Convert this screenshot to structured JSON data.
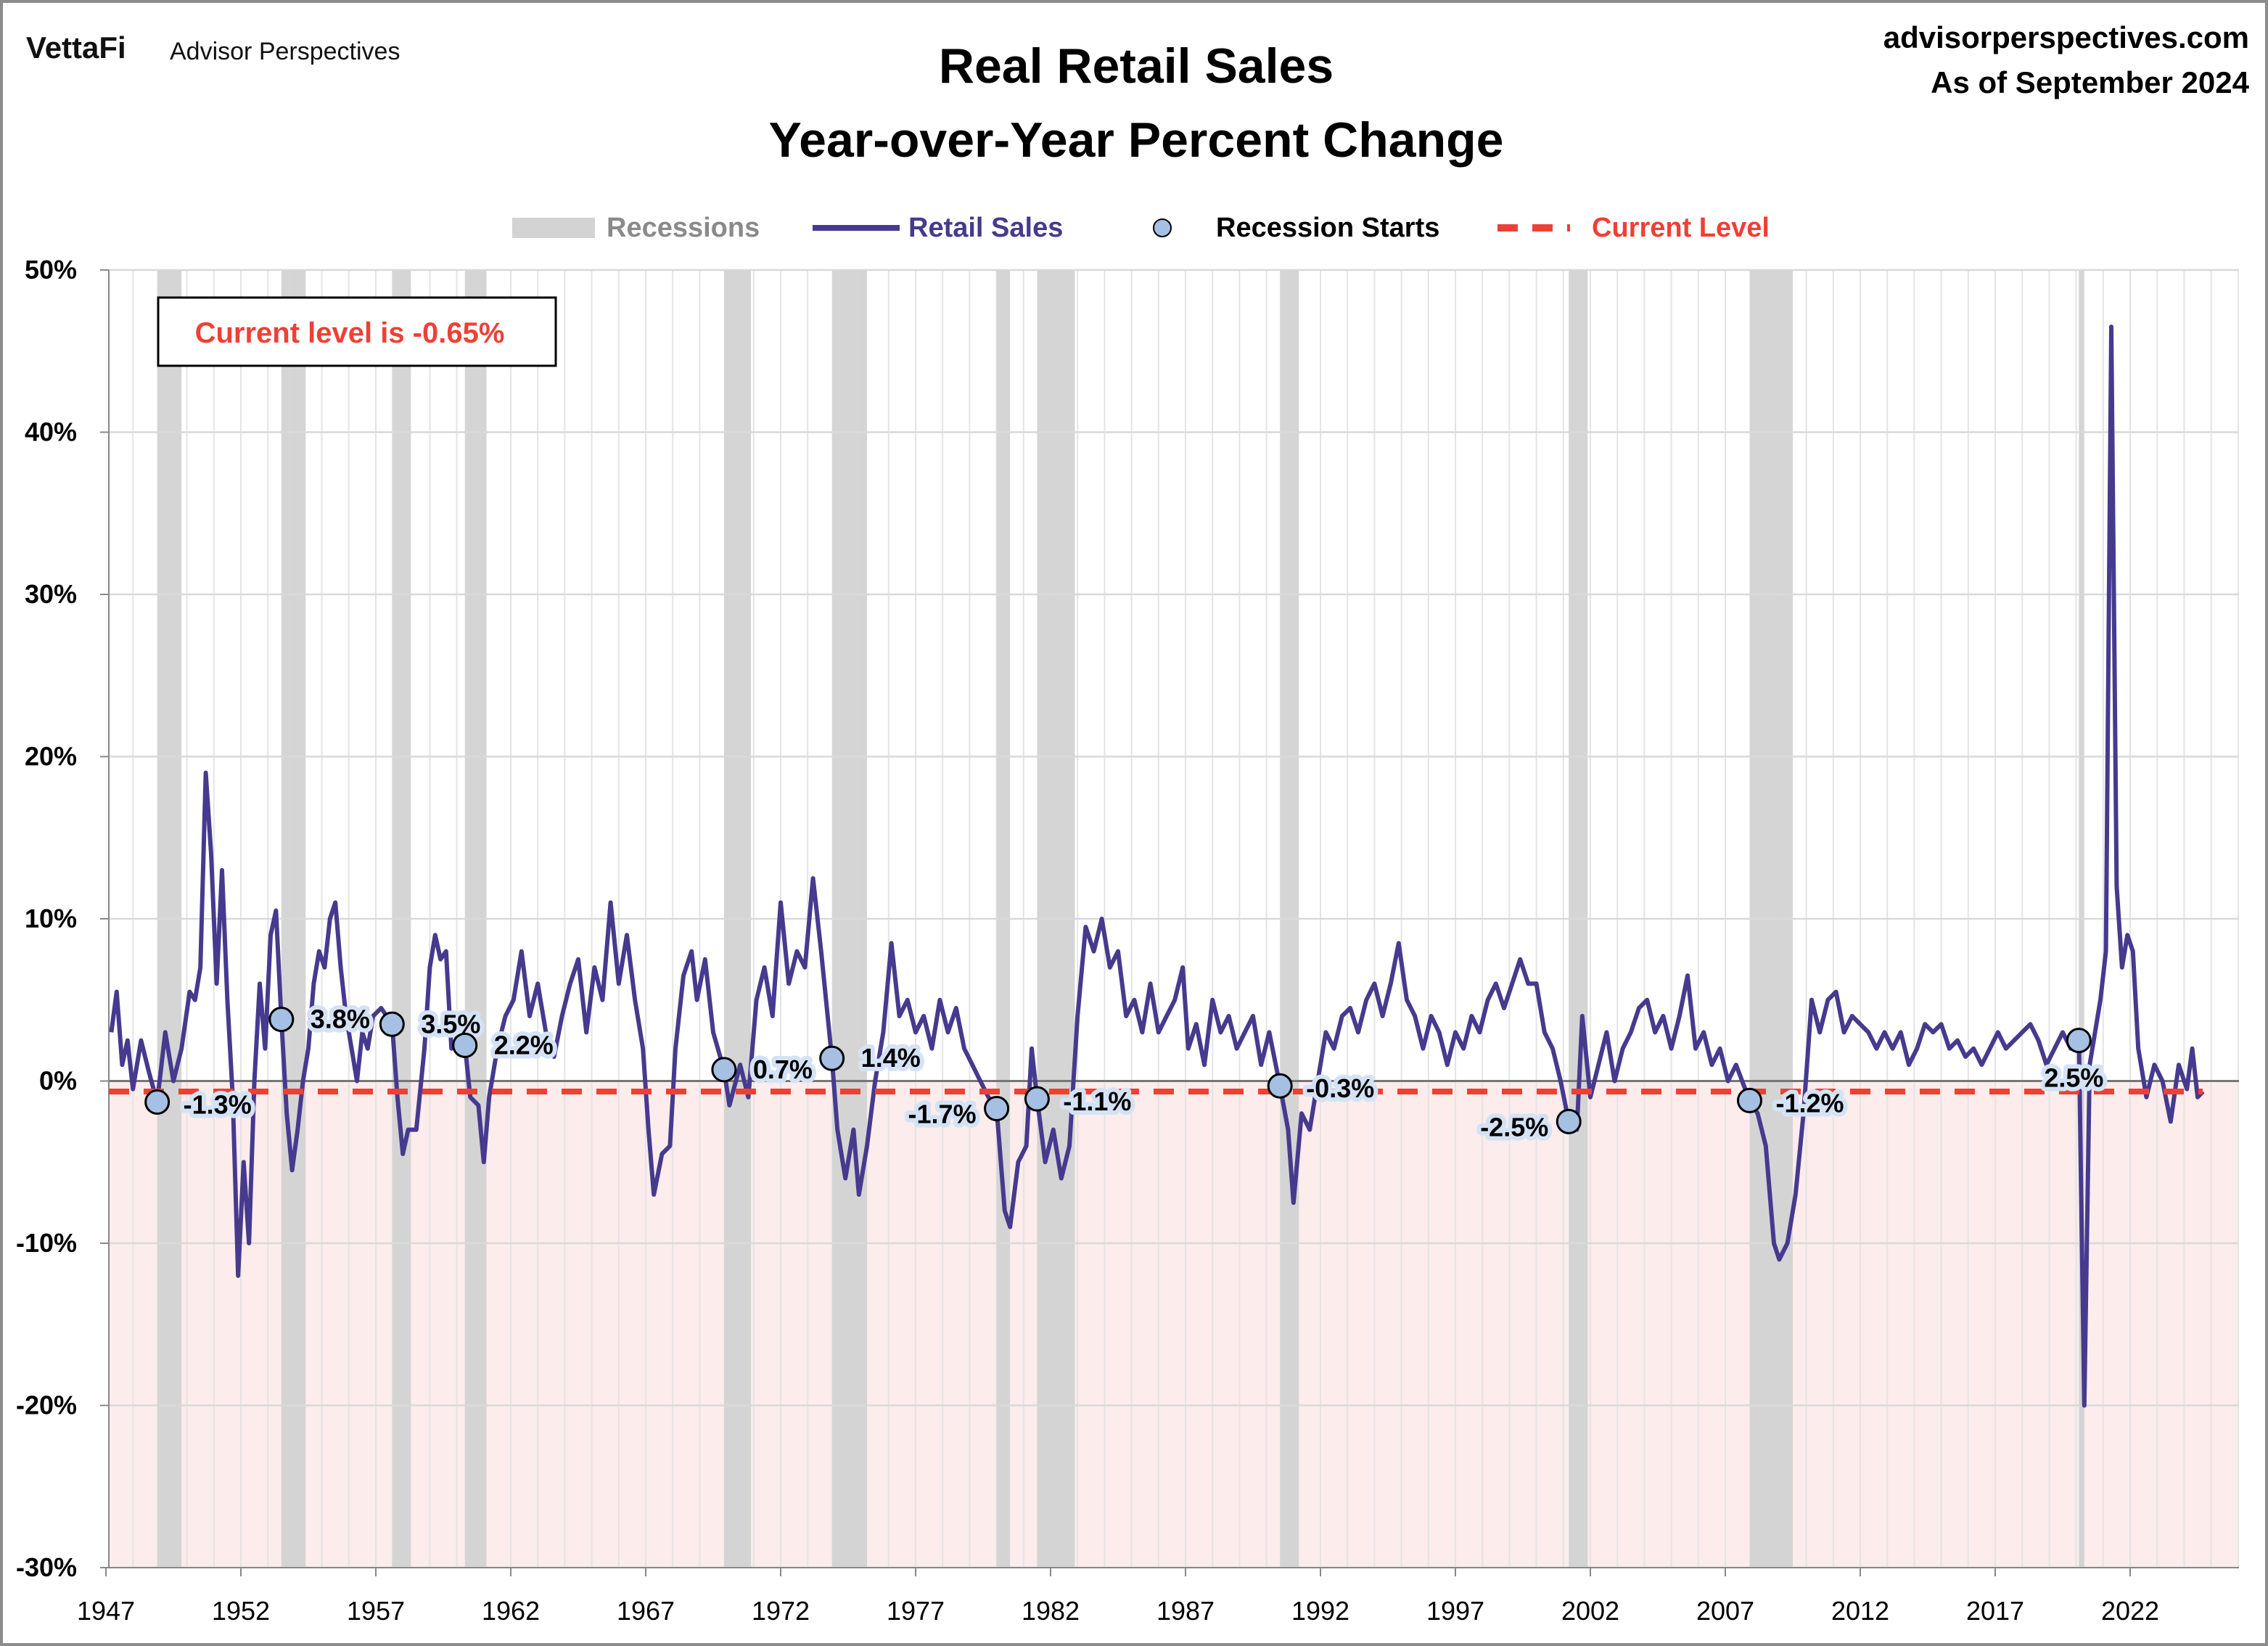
{
  "header": {
    "logo_brand": "VettaFi",
    "logo_sub": "Advisor Perspectives",
    "title_line1": "Real Retail Sales",
    "title_line2": "Year-over-Year Percent Change",
    "site": "advisorperspectives.com",
    "as_of": "As of September 2024"
  },
  "legend": {
    "recessions": "Recessions",
    "retail_sales": "Retail Sales",
    "recession_starts": "Recession Starts",
    "current_level": "Current Level"
  },
  "callout": "Current level is -0.65%",
  "colors": {
    "series": "#463A8E",
    "recession": "#D3D3D3",
    "current": "#EE4035",
    "marker": "#A6C0E4",
    "negative_zone": "#FCECEC"
  },
  "chart_data": {
    "type": "line",
    "ylim": [
      -30,
      50
    ],
    "yticks": [
      "-30%",
      "-20%",
      "-10%",
      "0%",
      "10%",
      "20%",
      "30%",
      "40%",
      "50%"
    ],
    "xticks": [
      "1947",
      "1952",
      "1957",
      "1962",
      "1967",
      "1972",
      "1977",
      "1982",
      "1987",
      "1992",
      "1997",
      "2002",
      "2007",
      "2012",
      "2017",
      "2022"
    ],
    "xlim": [
      1947,
      2026
    ],
    "grid": true,
    "current_level": -0.65,
    "recessions": [
      [
        1948.9,
        1949.8
      ],
      [
        1953.5,
        1954.4
      ],
      [
        1957.6,
        1958.3
      ],
      [
        1960.3,
        1961.1
      ],
      [
        1969.9,
        1970.9
      ],
      [
        1973.9,
        1975.2
      ],
      [
        1980.0,
        1980.5
      ],
      [
        1981.5,
        1982.9
      ],
      [
        1990.5,
        1991.2
      ],
      [
        2001.2,
        2001.9
      ],
      [
        2007.9,
        2009.5
      ],
      [
        2020.1,
        2020.3
      ]
    ],
    "recession_starts": [
      {
        "x": 1948.9,
        "y": -1.3,
        "label": "-1.3%"
      },
      {
        "x": 1953.5,
        "y": 3.8,
        "label": "3.8%"
      },
      {
        "x": 1957.6,
        "y": 3.5,
        "label": "3.5%"
      },
      {
        "x": 1960.3,
        "y": 2.2,
        "label": "2.2%"
      },
      {
        "x": 1969.9,
        "y": 0.7,
        "label": "0.7%"
      },
      {
        "x": 1973.9,
        "y": 1.4,
        "label": "1.4%"
      },
      {
        "x": 1980.0,
        "y": -1.7,
        "label": "-1.7%"
      },
      {
        "x": 1981.5,
        "y": -1.1,
        "label": "-1.1%"
      },
      {
        "x": 1990.5,
        "y": -0.3,
        "label": "-0.3%"
      },
      {
        "x": 2001.2,
        "y": -2.5,
        "label": "-2.5%"
      },
      {
        "x": 2007.9,
        "y": -1.2,
        "label": "-1.2%"
      },
      {
        "x": 2020.1,
        "y": 2.5,
        "label": "2.5%"
      }
    ],
    "series": [
      {
        "name": "Retail Sales",
        "points": [
          [
            1947.2,
            3
          ],
          [
            1947.4,
            5.5
          ],
          [
            1947.6,
            1
          ],
          [
            1947.8,
            2.5
          ],
          [
            1948.0,
            -0.5
          ],
          [
            1948.3,
            2.5
          ],
          [
            1948.6,
            0.5
          ],
          [
            1948.9,
            -1.3
          ],
          [
            1949.2,
            3
          ],
          [
            1949.5,
            0
          ],
          [
            1949.8,
            2
          ],
          [
            1950.1,
            5.5
          ],
          [
            1950.3,
            5
          ],
          [
            1950.5,
            7
          ],
          [
            1950.7,
            19
          ],
          [
            1950.9,
            14
          ],
          [
            1951.1,
            6
          ],
          [
            1951.3,
            13
          ],
          [
            1951.5,
            5
          ],
          [
            1951.7,
            -1
          ],
          [
            1951.9,
            -12
          ],
          [
            1952.1,
            -5
          ],
          [
            1952.3,
            -10
          ],
          [
            1952.5,
            0
          ],
          [
            1952.7,
            6
          ],
          [
            1952.9,
            2
          ],
          [
            1953.1,
            9
          ],
          [
            1953.3,
            10.5
          ],
          [
            1953.5,
            3.8
          ],
          [
            1953.7,
            -2
          ],
          [
            1953.9,
            -5.5
          ],
          [
            1954.1,
            -3
          ],
          [
            1954.3,
            0
          ],
          [
            1954.5,
            2
          ],
          [
            1954.7,
            6
          ],
          [
            1954.9,
            8
          ],
          [
            1955.1,
            7
          ],
          [
            1955.3,
            10
          ],
          [
            1955.5,
            11
          ],
          [
            1955.7,
            7
          ],
          [
            1955.9,
            4
          ],
          [
            1956.1,
            2
          ],
          [
            1956.3,
            0
          ],
          [
            1956.5,
            3
          ],
          [
            1956.7,
            2
          ],
          [
            1956.9,
            4
          ],
          [
            1957.2,
            4.5
          ],
          [
            1957.6,
            3.5
          ],
          [
            1957.8,
            -1
          ],
          [
            1958.0,
            -4.5
          ],
          [
            1958.2,
            -3
          ],
          [
            1958.5,
            -3
          ],
          [
            1958.8,
            2
          ],
          [
            1959.0,
            7
          ],
          [
            1959.2,
            9
          ],
          [
            1959.4,
            7.5
          ],
          [
            1959.6,
            8
          ],
          [
            1959.8,
            2
          ],
          [
            1960.1,
            3
          ],
          [
            1960.3,
            2.2
          ],
          [
            1960.5,
            -1
          ],
          [
            1960.8,
            -1.5
          ],
          [
            1961.0,
            -5
          ],
          [
            1961.2,
            -1
          ],
          [
            1961.5,
            2
          ],
          [
            1961.8,
            4
          ],
          [
            1962.1,
            5
          ],
          [
            1962.4,
            8
          ],
          [
            1962.7,
            4
          ],
          [
            1963.0,
            6
          ],
          [
            1963.3,
            3
          ],
          [
            1963.6,
            1.5
          ],
          [
            1963.9,
            4
          ],
          [
            1964.2,
            6
          ],
          [
            1964.5,
            7.5
          ],
          [
            1964.8,
            3
          ],
          [
            1965.1,
            7
          ],
          [
            1965.4,
            5
          ],
          [
            1965.7,
            11
          ],
          [
            1966.0,
            6
          ],
          [
            1966.3,
            9
          ],
          [
            1966.6,
            5
          ],
          [
            1966.9,
            2
          ],
          [
            1967.1,
            -3
          ],
          [
            1967.3,
            -7
          ],
          [
            1967.6,
            -4.5
          ],
          [
            1967.9,
            -4
          ],
          [
            1968.1,
            2
          ],
          [
            1968.4,
            6.5
          ],
          [
            1968.7,
            8
          ],
          [
            1968.9,
            5
          ],
          [
            1969.2,
            7.5
          ],
          [
            1969.5,
            3
          ],
          [
            1969.9,
            0.7
          ],
          [
            1970.1,
            -1.5
          ],
          [
            1970.5,
            1
          ],
          [
            1970.8,
            -1
          ],
          [
            1971.1,
            5
          ],
          [
            1971.4,
            7
          ],
          [
            1971.7,
            4
          ],
          [
            1972.0,
            11
          ],
          [
            1972.3,
            6
          ],
          [
            1972.6,
            8
          ],
          [
            1972.9,
            7
          ],
          [
            1973.2,
            12.5
          ],
          [
            1973.5,
            8
          ],
          [
            1973.9,
            1.4
          ],
          [
            1974.1,
            -3
          ],
          [
            1974.4,
            -6
          ],
          [
            1974.7,
            -3
          ],
          [
            1974.9,
            -7
          ],
          [
            1975.2,
            -4
          ],
          [
            1975.5,
            0
          ],
          [
            1975.8,
            3
          ],
          [
            1976.1,
            8.5
          ],
          [
            1976.4,
            4
          ],
          [
            1976.7,
            5
          ],
          [
            1977.0,
            3
          ],
          [
            1977.3,
            4
          ],
          [
            1977.6,
            2
          ],
          [
            1977.9,
            5
          ],
          [
            1978.2,
            3
          ],
          [
            1978.5,
            4.5
          ],
          [
            1978.8,
            2
          ],
          [
            1979.1,
            1
          ],
          [
            1979.4,
            0
          ],
          [
            1979.7,
            -1
          ],
          [
            1980.0,
            -1.7
          ],
          [
            1980.3,
            -8
          ],
          [
            1980.5,
            -9
          ],
          [
            1980.8,
            -5
          ],
          [
            1981.1,
            -4
          ],
          [
            1981.3,
            2
          ],
          [
            1981.5,
            -1.1
          ],
          [
            1981.8,
            -5
          ],
          [
            1982.1,
            -3
          ],
          [
            1982.4,
            -6
          ],
          [
            1982.7,
            -4
          ],
          [
            1983.0,
            4
          ],
          [
            1983.3,
            9.5
          ],
          [
            1983.6,
            8
          ],
          [
            1983.9,
            10
          ],
          [
            1984.2,
            7
          ],
          [
            1984.5,
            8
          ],
          [
            1984.8,
            4
          ],
          [
            1985.1,
            5
          ],
          [
            1985.4,
            3
          ],
          [
            1985.7,
            6
          ],
          [
            1986.0,
            3
          ],
          [
            1986.3,
            4
          ],
          [
            1986.6,
            5
          ],
          [
            1986.9,
            7
          ],
          [
            1987.1,
            2
          ],
          [
            1987.4,
            3.5
          ],
          [
            1987.7,
            1
          ],
          [
            1988.0,
            5
          ],
          [
            1988.3,
            3
          ],
          [
            1988.6,
            4
          ],
          [
            1988.9,
            2
          ],
          [
            1989.2,
            3
          ],
          [
            1989.5,
            4
          ],
          [
            1989.8,
            1
          ],
          [
            1990.1,
            3
          ],
          [
            1990.5,
            -0.3
          ],
          [
            1990.8,
            -3
          ],
          [
            1991.0,
            -7.5
          ],
          [
            1991.3,
            -2
          ],
          [
            1991.6,
            -3
          ],
          [
            1991.9,
            0
          ],
          [
            1992.2,
            3
          ],
          [
            1992.5,
            2
          ],
          [
            1992.8,
            4
          ],
          [
            1993.1,
            4.5
          ],
          [
            1993.4,
            3
          ],
          [
            1993.7,
            5
          ],
          [
            1994.0,
            6
          ],
          [
            1994.3,
            4
          ],
          [
            1994.6,
            6
          ],
          [
            1994.9,
            8.5
          ],
          [
            1995.2,
            5
          ],
          [
            1995.5,
            4
          ],
          [
            1995.8,
            2
          ],
          [
            1996.1,
            4
          ],
          [
            1996.4,
            3
          ],
          [
            1996.7,
            1
          ],
          [
            1997.0,
            3
          ],
          [
            1997.3,
            2
          ],
          [
            1997.6,
            4
          ],
          [
            1997.9,
            3
          ],
          [
            1998.2,
            5
          ],
          [
            1998.5,
            6
          ],
          [
            1998.8,
            4.5
          ],
          [
            1999.1,
            6
          ],
          [
            1999.4,
            7.5
          ],
          [
            1999.7,
            6
          ],
          [
            2000.0,
            6
          ],
          [
            2000.3,
            3
          ],
          [
            2000.6,
            2
          ],
          [
            2000.9,
            0
          ],
          [
            2001.2,
            -2.5
          ],
          [
            2001.5,
            -3
          ],
          [
            2001.7,
            4
          ],
          [
            2002.0,
            -1
          ],
          [
            2002.3,
            1
          ],
          [
            2002.6,
            3
          ],
          [
            2002.9,
            0
          ],
          [
            2003.2,
            2
          ],
          [
            2003.5,
            3
          ],
          [
            2003.8,
            4.5
          ],
          [
            2004.1,
            5
          ],
          [
            2004.4,
            3
          ],
          [
            2004.7,
            4
          ],
          [
            2005.0,
            2
          ],
          [
            2005.3,
            4
          ],
          [
            2005.6,
            6.5
          ],
          [
            2005.9,
            2
          ],
          [
            2006.2,
            3
          ],
          [
            2006.5,
            1
          ],
          [
            2006.8,
            2
          ],
          [
            2007.1,
            0
          ],
          [
            2007.4,
            1
          ],
          [
            2007.9,
            -1.2
          ],
          [
            2008.2,
            -2
          ],
          [
            2008.5,
            -4
          ],
          [
            2008.8,
            -10
          ],
          [
            2009.0,
            -11
          ],
          [
            2009.3,
            -10
          ],
          [
            2009.6,
            -7
          ],
          [
            2009.9,
            -2
          ],
          [
            2010.2,
            5
          ],
          [
            2010.5,
            3
          ],
          [
            2010.8,
            5
          ],
          [
            2011.1,
            5.5
          ],
          [
            2011.4,
            3
          ],
          [
            2011.7,
            4
          ],
          [
            2012.0,
            3.5
          ],
          [
            2012.3,
            3
          ],
          [
            2012.6,
            2
          ],
          [
            2012.9,
            3
          ],
          [
            2013.2,
            2
          ],
          [
            2013.5,
            3
          ],
          [
            2013.8,
            1
          ],
          [
            2014.1,
            2
          ],
          [
            2014.4,
            3.5
          ],
          [
            2014.7,
            3
          ],
          [
            2015.0,
            3.5
          ],
          [
            2015.3,
            2
          ],
          [
            2015.6,
            2.5
          ],
          [
            2015.9,
            1.5
          ],
          [
            2016.2,
            2
          ],
          [
            2016.5,
            1
          ],
          [
            2016.8,
            2
          ],
          [
            2017.1,
            3
          ],
          [
            2017.4,
            2
          ],
          [
            2017.7,
            2.5
          ],
          [
            2018.0,
            3
          ],
          [
            2018.3,
            3.5
          ],
          [
            2018.6,
            2.5
          ],
          [
            2018.9,
            1
          ],
          [
            2019.2,
            2
          ],
          [
            2019.5,
            3
          ],
          [
            2019.8,
            2
          ],
          [
            2020.1,
            2.5
          ],
          [
            2020.3,
            -20
          ],
          [
            2020.5,
            1
          ],
          [
            2020.7,
            3
          ],
          [
            2020.9,
            5
          ],
          [
            2021.1,
            8
          ],
          [
            2021.3,
            46.5
          ],
          [
            2021.5,
            12
          ],
          [
            2021.7,
            7
          ],
          [
            2021.9,
            9
          ],
          [
            2022.1,
            8
          ],
          [
            2022.3,
            2
          ],
          [
            2022.6,
            -1
          ],
          [
            2022.9,
            1
          ],
          [
            2023.2,
            0
          ],
          [
            2023.5,
            -2.5
          ],
          [
            2023.8,
            1
          ],
          [
            2024.1,
            -0.5
          ],
          [
            2024.3,
            2
          ],
          [
            2024.5,
            -1
          ],
          [
            2024.7,
            -0.65
          ]
        ]
      }
    ]
  }
}
